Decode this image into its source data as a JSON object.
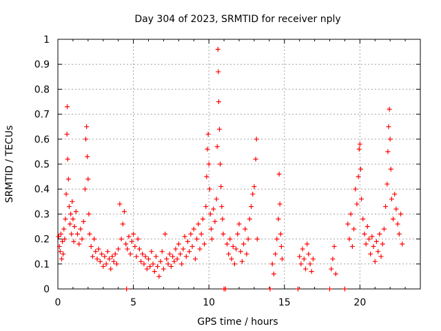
{
  "chart_data": {
    "type": "scatter",
    "title": "Day 304 of 2023, SRMTID for receiver nply",
    "xlabel": "GPS time / hours",
    "ylabel": "SRMTID / TECUs",
    "xlim": [
      0,
      24
    ],
    "ylim": [
      0,
      1
    ],
    "x_ticks": [
      0,
      5,
      10,
      15,
      20
    ],
    "x_tick_labels": [
      "0",
      "5",
      "10",
      "15",
      "20"
    ],
    "y_ticks": [
      0,
      0.1,
      0.2,
      0.3,
      0.4,
      0.5,
      0.6,
      0.7,
      0.8,
      0.9,
      1
    ],
    "y_tick_labels": [
      "0",
      "0.1",
      "0.2",
      "0.3",
      "0.4",
      "0.5",
      "0.6",
      "0.7",
      "0.8",
      "0.9",
      "1"
    ],
    "grid": true,
    "marker": "+",
    "series_color": "#ff0000",
    "series": [
      {
        "name": "SRMTID",
        "points": [
          [
            0.05,
            0.21
          ],
          [
            0.1,
            0.17
          ],
          [
            0.15,
            0.15
          ],
          [
            0.2,
            0.22
          ],
          [
            0.25,
            0.12
          ],
          [
            0.3,
            0.19
          ],
          [
            0.35,
            0.14
          ],
          [
            0.4,
            0.24
          ],
          [
            0.45,
            0.2
          ],
          [
            0.5,
            0.28
          ],
          [
            0.55,
            0.38
          ],
          [
            0.6,
            0.62
          ],
          [
            0.62,
            0.73
          ],
          [
            0.65,
            0.52
          ],
          [
            0.7,
            0.44
          ],
          [
            0.75,
            0.33
          ],
          [
            0.8,
            0.26
          ],
          [
            0.85,
            0.3
          ],
          [
            0.9,
            0.22
          ],
          [
            0.95,
            0.35
          ],
          [
            1.0,
            0.28
          ],
          [
            1.05,
            0.19
          ],
          [
            1.1,
            0.25
          ],
          [
            1.2,
            0.31
          ],
          [
            1.3,
            0.22
          ],
          [
            1.4,
            0.18
          ],
          [
            1.5,
            0.24
          ],
          [
            1.6,
            0.2
          ],
          [
            1.7,
            0.27
          ],
          [
            1.8,
            0.4
          ],
          [
            1.85,
            0.6
          ],
          [
            1.9,
            0.65
          ],
          [
            1.95,
            0.53
          ],
          [
            2.0,
            0.44
          ],
          [
            2.05,
            0.3
          ],
          [
            2.1,
            0.22
          ],
          [
            2.2,
            0.17
          ],
          [
            2.3,
            0.13
          ],
          [
            2.4,
            0.2
          ],
          [
            2.5,
            0.15
          ],
          [
            2.6,
            0.12
          ],
          [
            2.7,
            0.16
          ],
          [
            2.8,
            0.11
          ],
          [
            2.9,
            0.14
          ],
          [
            3.0,
            0.09
          ],
          [
            3.1,
            0.13
          ],
          [
            3.2,
            0.1
          ],
          [
            3.3,
            0.15
          ],
          [
            3.4,
            0.12
          ],
          [
            3.5,
            0.08
          ],
          [
            3.6,
            0.13
          ],
          [
            3.7,
            0.11
          ],
          [
            3.8,
            0.14
          ],
          [
            3.9,
            0.1
          ],
          [
            4.0,
            0.16
          ],
          [
            4.1,
            0.34
          ],
          [
            4.2,
            0.2
          ],
          [
            4.3,
            0.26
          ],
          [
            4.4,
            0.31
          ],
          [
            4.5,
            0.18
          ],
          [
            4.55,
            0.0
          ],
          [
            4.6,
            0.16
          ],
          [
            4.7,
            0.21
          ],
          [
            4.8,
            0.14
          ],
          [
            4.9,
            0.19
          ],
          [
            5.0,
            0.22
          ],
          [
            5.1,
            0.17
          ],
          [
            5.2,
            0.13
          ],
          [
            5.3,
            0.2
          ],
          [
            5.4,
            0.16
          ],
          [
            5.5,
            0.11
          ],
          [
            5.6,
            0.14
          ],
          [
            5.7,
            0.1
          ],
          [
            5.8,
            0.13
          ],
          [
            5.9,
            0.08
          ],
          [
            6.0,
            0.12
          ],
          [
            6.1,
            0.09
          ],
          [
            6.2,
            0.15
          ],
          [
            6.3,
            0.1
          ],
          [
            6.4,
            0.07
          ],
          [
            6.5,
            0.13
          ],
          [
            6.6,
            0.09
          ],
          [
            6.7,
            0.05
          ],
          [
            6.8,
            0.11
          ],
          [
            6.9,
            0.15
          ],
          [
            7.0,
            0.08
          ],
          [
            7.1,
            0.22
          ],
          [
            7.2,
            0.12
          ],
          [
            7.3,
            0.1
          ],
          [
            7.4,
            0.14
          ],
          [
            7.5,
            0.09
          ],
          [
            7.6,
            0.13
          ],
          [
            7.7,
            0.11
          ],
          [
            7.8,
            0.16
          ],
          [
            7.9,
            0.12
          ],
          [
            8.0,
            0.18
          ],
          [
            8.1,
            0.14
          ],
          [
            8.2,
            0.1
          ],
          [
            8.3,
            0.16
          ],
          [
            8.4,
            0.21
          ],
          [
            8.5,
            0.13
          ],
          [
            8.6,
            0.19
          ],
          [
            8.7,
            0.15
          ],
          [
            8.8,
            0.22
          ],
          [
            8.9,
            0.17
          ],
          [
            9.0,
            0.24
          ],
          [
            9.1,
            0.12
          ],
          [
            9.2,
            0.2
          ],
          [
            9.3,
            0.26
          ],
          [
            9.4,
            0.16
          ],
          [
            9.5,
            0.22
          ],
          [
            9.6,
            0.28
          ],
          [
            9.7,
            0.18
          ],
          [
            9.8,
            0.33
          ],
          [
            9.85,
            0.45
          ],
          [
            9.9,
            0.56
          ],
          [
            9.95,
            0.62
          ],
          [
            10.0,
            0.5
          ],
          [
            10.05,
            0.4
          ],
          [
            10.1,
            0.3
          ],
          [
            10.15,
            0.24
          ],
          [
            10.2,
            0.2
          ],
          [
            10.3,
            0.32
          ],
          [
            10.4,
            0.27
          ],
          [
            10.5,
            0.36
          ],
          [
            10.55,
            0.57
          ],
          [
            10.6,
            0.96
          ],
          [
            10.62,
            0.87
          ],
          [
            10.65,
            0.75
          ],
          [
            10.7,
            0.64
          ],
          [
            10.75,
            0.5
          ],
          [
            10.8,
            0.41
          ],
          [
            10.85,
            0.33
          ],
          [
            10.9,
            0.28
          ],
          [
            10.95,
            0.22
          ],
          [
            11.0,
            0.0
          ],
          [
            11.1,
            0.0
          ],
          [
            11.2,
            0.18
          ],
          [
            11.3,
            0.14
          ],
          [
            11.4,
            0.2
          ],
          [
            11.5,
            0.12
          ],
          [
            11.6,
            0.17
          ],
          [
            11.7,
            0.1
          ],
          [
            11.8,
            0.16
          ],
          [
            11.9,
            0.22
          ],
          [
            12.0,
            0.26
          ],
          [
            12.1,
            0.15
          ],
          [
            12.2,
            0.11
          ],
          [
            12.3,
            0.18
          ],
          [
            12.4,
            0.24
          ],
          [
            12.5,
            0.14
          ],
          [
            12.6,
            0.2
          ],
          [
            12.7,
            0.28
          ],
          [
            12.8,
            0.33
          ],
          [
            12.9,
            0.38
          ],
          [
            13.0,
            0.41
          ],
          [
            13.1,
            0.52
          ],
          [
            13.15,
            0.6
          ],
          [
            13.2,
            0.2
          ],
          [
            14.05,
            0.0
          ],
          [
            14.2,
            0.1
          ],
          [
            14.3,
            0.06
          ],
          [
            14.4,
            0.14
          ],
          [
            14.5,
            0.2
          ],
          [
            14.6,
            0.28
          ],
          [
            14.65,
            0.46
          ],
          [
            14.7,
            0.34
          ],
          [
            14.75,
            0.22
          ],
          [
            14.8,
            0.17
          ],
          [
            14.85,
            0.12
          ],
          [
            15.9,
            0.0
          ],
          [
            16.0,
            0.13
          ],
          [
            16.1,
            0.1
          ],
          [
            16.2,
            0.16
          ],
          [
            16.3,
            0.12
          ],
          [
            16.4,
            0.08
          ],
          [
            16.5,
            0.18
          ],
          [
            16.6,
            0.14
          ],
          [
            16.7,
            0.1
          ],
          [
            16.8,
            0.07
          ],
          [
            16.9,
            0.12
          ],
          [
            18.0,
            0.0
          ],
          [
            18.1,
            0.08
          ],
          [
            18.2,
            0.12
          ],
          [
            18.3,
            0.17
          ],
          [
            18.4,
            0.06
          ],
          [
            19.0,
            0.0
          ],
          [
            19.2,
            0.26
          ],
          [
            19.3,
            0.2
          ],
          [
            19.4,
            0.3
          ],
          [
            19.5,
            0.17
          ],
          [
            19.6,
            0.24
          ],
          [
            19.7,
            0.4
          ],
          [
            19.8,
            0.34
          ],
          [
            19.9,
            0.45
          ],
          [
            19.95,
            0.56
          ],
          [
            20.0,
            0.58
          ],
          [
            20.05,
            0.48
          ],
          [
            20.1,
            0.36
          ],
          [
            20.2,
            0.28
          ],
          [
            20.3,
            0.22
          ],
          [
            20.4,
            0.18
          ],
          [
            20.5,
            0.25
          ],
          [
            20.6,
            0.2
          ],
          [
            20.7,
            0.14
          ],
          [
            20.8,
            0.21
          ],
          [
            20.9,
            0.17
          ],
          [
            21.0,
            0.11
          ],
          [
            21.1,
            0.19
          ],
          [
            21.2,
            0.15
          ],
          [
            21.3,
            0.22
          ],
          [
            21.4,
            0.13
          ],
          [
            21.5,
            0.18
          ],
          [
            21.6,
            0.24
          ],
          [
            21.7,
            0.33
          ],
          [
            21.8,
            0.42
          ],
          [
            21.85,
            0.55
          ],
          [
            21.9,
            0.65
          ],
          [
            21.95,
            0.72
          ],
          [
            22.0,
            0.6
          ],
          [
            22.05,
            0.48
          ],
          [
            22.1,
            0.36
          ],
          [
            22.2,
            0.28
          ],
          [
            22.3,
            0.38
          ],
          [
            22.4,
            0.32
          ],
          [
            22.5,
            0.26
          ],
          [
            22.6,
            0.22
          ],
          [
            22.7,
            0.3
          ],
          [
            22.8,
            0.18
          ]
        ]
      }
    ]
  }
}
